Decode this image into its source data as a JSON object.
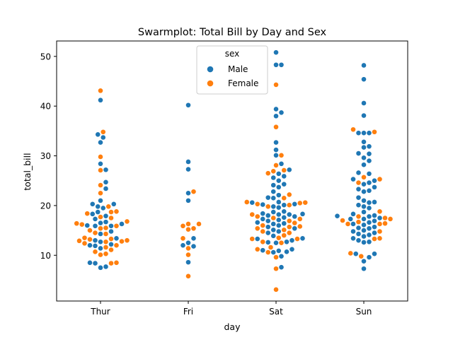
{
  "chart_data": {
    "type": "scatter",
    "subtype": "swarm",
    "title": "Swarmplot: Total Bill by Day and Sex",
    "xlabel": "day",
    "ylabel": "total_bill",
    "categories": [
      "Thur",
      "Fri",
      "Sat",
      "Sun"
    ],
    "ylim": [
      0.8,
      53.1
    ],
    "yticks": [
      10,
      20,
      30,
      40,
      50
    ],
    "grid": false,
    "legend": {
      "title": "sex",
      "placement": "top-center",
      "entries": [
        "Male",
        "Female"
      ]
    },
    "colors": {
      "Male": "#1f77b4",
      "Female": "#ff7f0e"
    },
    "series": [
      {
        "name": "Male",
        "values": {
          "Thur": [
            41.2,
            34.3,
            33.7,
            32.7,
            28.4,
            27.2,
            24.7,
            23.4,
            21.0,
            20.3,
            20.3,
            19.8,
            19.5,
            18.7,
            18.3,
            17.9,
            17.3,
            16.7,
            16.5,
            16.3,
            16.0,
            15.9,
            15.9,
            14.8,
            14.3,
            13.4,
            13.0,
            12.7,
            12.2,
            12.0,
            11.9,
            11.4,
            8.5,
            8.4,
            7.7,
            7.5
          ],
          "Fri": [
            40.2,
            28.8,
            27.3,
            22.5,
            21.0,
            13.4,
            12.5,
            12.0,
            11.8,
            8.6
          ],
          "Sat": [
            50.8,
            48.3,
            48.3,
            39.4,
            38.7,
            38.0,
            32.7,
            31.2,
            30.1,
            28.4,
            27.2,
            26.4,
            25.9,
            25.6,
            25.0,
            24.3,
            24.1,
            23.7,
            22.8,
            22.1,
            21.6,
            21.5,
            20.7,
            20.6,
            20.2,
            20.3,
            20.1,
            19.8,
            19.6,
            18.8,
            18.7,
            18.4,
            18.3,
            18.2,
            18.2,
            18.0,
            17.8,
            17.6,
            17.3,
            17.1,
            16.9,
            16.6,
            16.4,
            16.3,
            16.0,
            15.7,
            15.4,
            15.1,
            14.8,
            14.5,
            13.9,
            13.4,
            13.3,
            13.0,
            12.7,
            12.6,
            12.5,
            11.2,
            11.0,
            10.9,
            10.7,
            10.6,
            9.8,
            7.6
          ],
          "Sun": [
            48.2,
            45.4,
            40.6,
            38.1,
            34.6,
            34.6,
            34.6,
            32.8,
            31.9,
            31.7,
            30.5,
            30.4,
            29.6,
            29.0,
            28.2,
            26.6,
            26.4,
            25.3,
            25.0,
            24.6,
            24.3,
            23.7,
            23.3,
            23.0,
            22.8,
            21.6,
            21.0,
            20.7,
            20.6,
            20.1,
            19.8,
            19.5,
            18.7,
            18.3,
            18.0,
            17.9,
            17.8,
            17.5,
            17.3,
            17.3,
            16.9,
            16.6,
            16.3,
            16.1,
            15.7,
            15.5,
            15.4,
            15.0,
            14.8,
            14.5,
            14.3,
            14.1,
            13.8,
            13.4,
            13.0,
            12.7,
            12.6,
            10.3,
            10.3,
            9.6,
            8.8,
            7.3
          ]
        }
      },
      {
        "name": "Female",
        "values": {
          "Thur": [
            43.1,
            34.8,
            29.8,
            27.1,
            24.1,
            22.5,
            19.8,
            18.8,
            18.7,
            18.4,
            17.7,
            17.5,
            16.8,
            16.4,
            16.2,
            15.9,
            15.5,
            15.4,
            15.0,
            14.5,
            14.3,
            13.5,
            13.3,
            13.2,
            13.0,
            12.9,
            12.8,
            12.7,
            12.4,
            12.0,
            11.6,
            11.1,
            10.7,
            10.3,
            10.1,
            8.5,
            8.4
          ],
          "Fri": [
            22.8,
            16.3,
            16.3,
            15.9,
            15.4,
            15.2,
            13.4,
            11.4,
            10.1,
            5.8
          ],
          "Sat": [
            44.3,
            35.8,
            30.1,
            28.1,
            27.1,
            26.9,
            26.5,
            22.2,
            21.5,
            20.7,
            20.6,
            20.5,
            20.3,
            20.1,
            19.8,
            18.2,
            17.8,
            17.5,
            17.3,
            16.9,
            16.5,
            16.0,
            15.8,
            15.7,
            15.4,
            15.1,
            14.8,
            14.5,
            14.0,
            13.5,
            13.3,
            13.3,
            12.7,
            12.5,
            11.6,
            11.2,
            10.6,
            9.6,
            7.3,
            3.1
          ],
          "Sun": [
            35.3,
            34.8,
            25.7,
            25.3,
            24.6,
            18.8,
            17.8,
            17.5,
            17.3,
            17.0,
            16.7,
            16.4,
            16.3,
            16.3,
            14.8,
            13.4,
            13.3,
            10.4,
            9.8
          ]
        }
      }
    ]
  }
}
